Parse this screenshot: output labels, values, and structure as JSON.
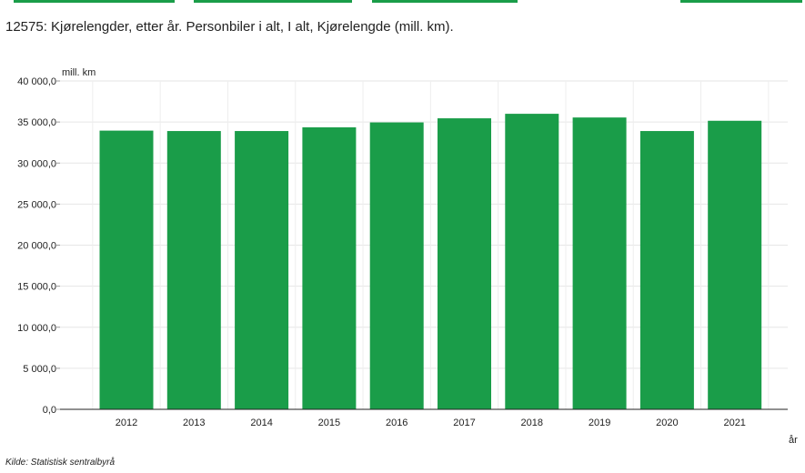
{
  "header": {
    "title": "12575: Kjørelengder, etter år. Personbiler i alt, I alt, Kjørelengde (mill. km)."
  },
  "tabs_accent_color": "#1a9d49",
  "chart_data": {
    "type": "bar",
    "categories": [
      "2012",
      "2013",
      "2014",
      "2015",
      "2016",
      "2017",
      "2018",
      "2019",
      "2020",
      "2021"
    ],
    "values": [
      33950,
      33900,
      33900,
      34350,
      34950,
      35450,
      36000,
      35550,
      33900,
      35150
    ],
    "y_unit_label": "mill. km",
    "xlabel": "år",
    "ylim": [
      0,
      40000
    ],
    "yticks": [
      "0,0",
      "5 000,0",
      "10 000,0",
      "15 000,0",
      "20 000,0",
      "25 000,0",
      "30 000,0",
      "35 000,0",
      "40 000,0"
    ],
    "bar_color": "#1a9d49",
    "grid": true,
    "legend": "none"
  },
  "footer": {
    "source": "Kilde:  Statistisk sentralbyrå"
  }
}
